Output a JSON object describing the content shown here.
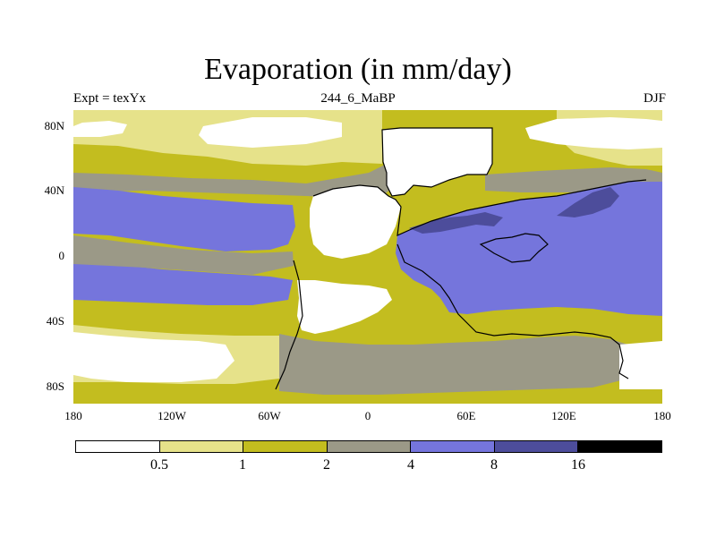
{
  "title": "Evaporation (in mm/day)",
  "subtitle_left": "Expt = texYx",
  "subtitle_center": "244_6_MaBP",
  "subtitle_right": "DJF",
  "lat_ticks": [
    {
      "label": "80N",
      "value": 80
    },
    {
      "label": "40N",
      "value": 40
    },
    {
      "label": "0",
      "value": 0
    },
    {
      "label": "40S",
      "value": -40
    },
    {
      "label": "80S",
      "value": -80
    }
  ],
  "lon_ticks": [
    {
      "label": "180",
      "value": -180
    },
    {
      "label": "120W",
      "value": -120
    },
    {
      "label": "60W",
      "value": -60
    },
    {
      "label": "0",
      "value": 0
    },
    {
      "label": "60E",
      "value": 60
    },
    {
      "label": "120E",
      "value": 120
    },
    {
      "label": "180",
      "value": 180
    }
  ],
  "colorbar": {
    "colors": [
      "#ffffff",
      "#e6e28a",
      "#c3bd1f",
      "#9b9987",
      "#7575dc",
      "#4d4d9b",
      "#000000"
    ],
    "labels": [
      "0.5",
      "1",
      "2",
      "4",
      "8",
      "16"
    ]
  },
  "regions": {
    "background": "#c3bd1f",
    "pale_band": "#e6e28a",
    "gray_band": "#9b9987",
    "blue": "#7575dc",
    "dark_blue": "#4d4d9b",
    "white": "#ffffff"
  }
}
